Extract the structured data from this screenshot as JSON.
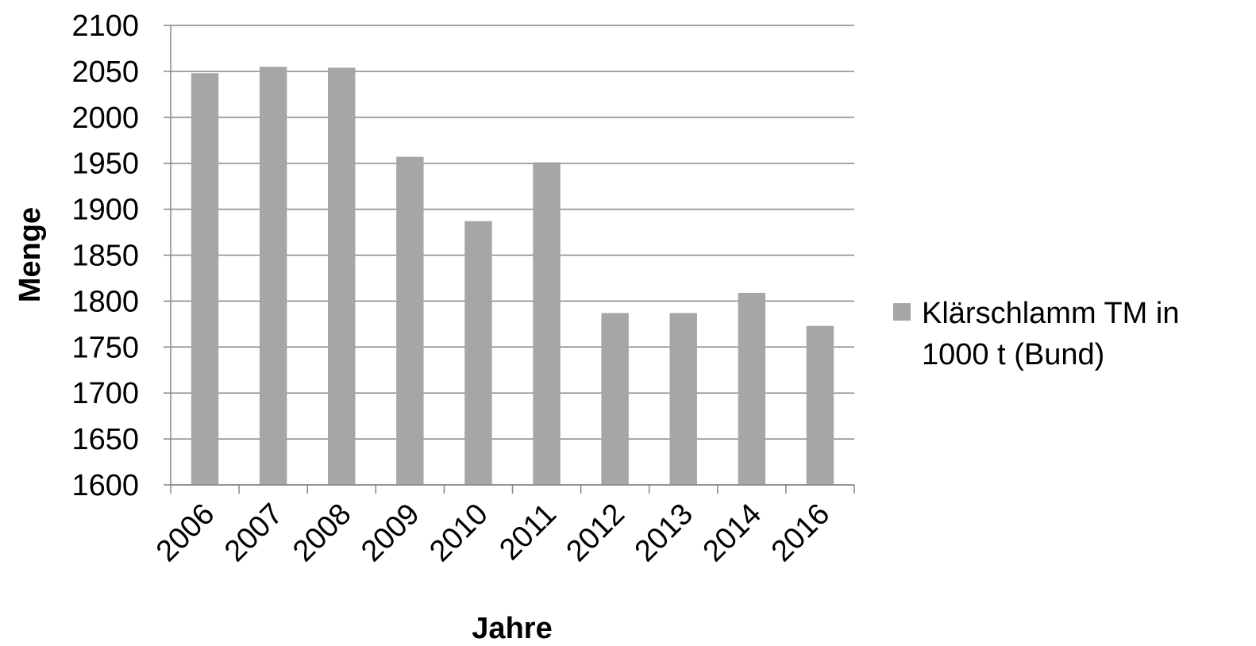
{
  "chart_data": {
    "type": "bar",
    "title": "",
    "xlabel": "Jahre",
    "ylabel": "Menge",
    "categories": [
      "2006",
      "2007",
      "2008",
      "2009",
      "2010",
      "2011",
      "2012",
      "2013",
      "2014",
      "2016"
    ],
    "series": [
      {
        "name": "Klärschlamm TM in 1000 t (Bund)",
        "name_lines": [
          "Klärschlamm TM in",
          "1000 t (Bund)"
        ],
        "color": "#a6a6a6",
        "values": [
          2048,
          2055,
          2054,
          1957,
          1887,
          1951,
          1787,
          1787,
          1809,
          1773
        ]
      }
    ],
    "ylim": [
      1600,
      2100
    ],
    "yticks": [
      1600,
      1650,
      1700,
      1750,
      1800,
      1850,
      1900,
      1950,
      2000,
      2050,
      2100
    ],
    "grid": true,
    "legend_position": "right",
    "colors": {
      "bar": "#a6a6a6",
      "gridline": "#868686",
      "axis": "#868686",
      "text": "#000000"
    }
  }
}
